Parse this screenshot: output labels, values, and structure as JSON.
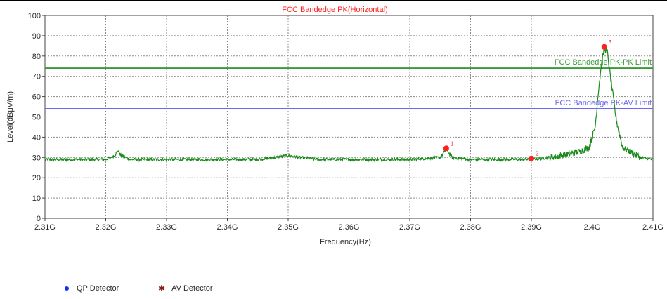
{
  "chart_data": {
    "type": "line",
    "title": "FCC Bandedge PK(Horizontal)",
    "xlabel": "Frequency(Hz)",
    "ylabel": "Level(dBμV/m)",
    "xlim": [
      2.31,
      2.41
    ],
    "ylim": [
      0,
      100
    ],
    "x_ticks": [
      2.31,
      2.32,
      2.33,
      2.34,
      2.35,
      2.36,
      2.37,
      2.38,
      2.39,
      2.4,
      2.41
    ],
    "x_tick_labels": [
      "2.31G",
      "2.32G",
      "2.33G",
      "2.34G",
      "2.35G",
      "2.36G",
      "2.37G",
      "2.38G",
      "2.39G",
      "2.4G",
      "2.41G"
    ],
    "y_ticks": [
      0,
      10,
      20,
      30,
      40,
      50,
      60,
      70,
      80,
      90,
      100
    ],
    "y_tick_labels": [
      "0",
      "10",
      "20",
      "30",
      "40",
      "50",
      "60",
      "70",
      "80",
      "90",
      "100"
    ],
    "grid": true,
    "series": [
      {
        "color": "#1a8a1a",
        "x": [
          2.31,
          2.315,
          2.32,
          2.3215,
          2.322,
          2.3225,
          2.324,
          2.33,
          2.34,
          2.345,
          2.348,
          2.35,
          2.352,
          2.355,
          2.36,
          2.37,
          2.375,
          2.376,
          2.377,
          2.38,
          2.39,
          2.393,
          2.396,
          2.398,
          2.3995,
          2.4005,
          2.401,
          2.4015,
          2.402,
          2.4025,
          2.403,
          2.404,
          2.405,
          2.408,
          2.41
        ],
        "y": [
          29,
          29,
          29,
          31,
          33.5,
          31,
          29,
          29,
          29,
          29,
          30,
          31,
          30,
          29,
          29,
          29,
          30,
          34,
          30,
          29,
          29,
          30,
          31.5,
          33,
          35,
          45,
          62,
          75,
          84,
          82,
          70,
          48,
          35,
          30,
          29
        ]
      }
    ],
    "limit_lines": [
      {
        "name": "FCC Bandedge PK-PK Limit",
        "value": 74,
        "color": "#3a9a3a"
      },
      {
        "name": "FCC Bandedge PK-AV Limit",
        "value": 54,
        "color": "#6a6aee"
      }
    ],
    "markers": [
      {
        "label": "1",
        "x": 2.376,
        "y": 34.5,
        "color": "#ff2020"
      },
      {
        "label": "2",
        "x": 2.39,
        "y": 29.5,
        "color": "#ff2020"
      },
      {
        "label": "3",
        "x": 2.402,
        "y": 84.5,
        "color": "#ff2020"
      }
    ],
    "legend": [
      {
        "label": "QP Detector",
        "color": "#1030ff",
        "marker": "dot"
      },
      {
        "label": "AV Detector",
        "color": "#8b1a1a",
        "marker": "star"
      }
    ]
  }
}
